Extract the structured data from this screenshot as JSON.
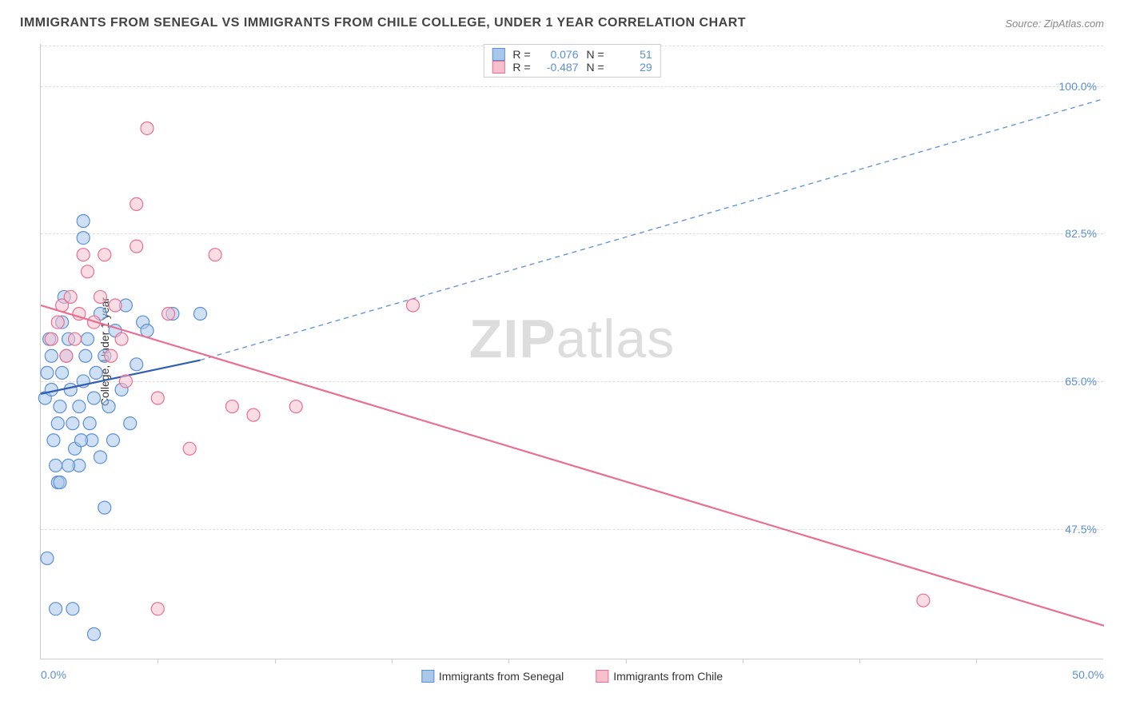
{
  "title": "IMMIGRANTS FROM SENEGAL VS IMMIGRANTS FROM CHILE COLLEGE, UNDER 1 YEAR CORRELATION CHART",
  "source": "Source: ZipAtlas.com",
  "watermark_bold": "ZIP",
  "watermark_rest": "atlas",
  "ylabel": "College, Under 1 year",
  "chart": {
    "type": "scatter",
    "xlim": [
      0,
      50
    ],
    "ylim": [
      32,
      105
    ],
    "x_ticks": [
      0,
      50
    ],
    "x_tick_labels": [
      "0.0%",
      "50.0%"
    ],
    "x_minor_ticks": [
      5.5,
      11,
      16.5,
      22,
      27.5,
      33,
      38.5,
      44
    ],
    "y_ticks": [
      47.5,
      65.0,
      82.5,
      100.0
    ],
    "y_tick_labels": [
      "47.5%",
      "65.0%",
      "82.5%",
      "100.0%"
    ],
    "grid_color": "#dddddd",
    "background": "#ffffff",
    "marker_radius": 8,
    "marker_opacity": 0.55,
    "marker_stroke_width": 1.2,
    "series": [
      {
        "name": "Immigrants from Senegal",
        "fill": "#a9c7eb",
        "stroke": "#5b8fd6",
        "r_value": "0.076",
        "n_value": "51",
        "trend_solid": {
          "x1": 0,
          "y1": 63.5,
          "x2": 7.5,
          "y2": 67.5,
          "stroke": "#2f5fb0",
          "width": 2.2
        },
        "trend_dashed": {
          "x1": 7.5,
          "y1": 67.5,
          "x2": 50,
          "y2": 98.5,
          "stroke": "#5b8fd6",
          "width": 1.3,
          "dash": "6,5"
        },
        "points": [
          [
            0.2,
            63
          ],
          [
            0.3,
            66
          ],
          [
            0.4,
            70
          ],
          [
            0.5,
            68
          ],
          [
            0.5,
            64
          ],
          [
            0.6,
            58
          ],
          [
            0.7,
            55
          ],
          [
            0.8,
            53
          ],
          [
            0.8,
            60
          ],
          [
            0.9,
            62
          ],
          [
            1.0,
            66
          ],
          [
            1.0,
            72
          ],
          [
            1.1,
            75
          ],
          [
            1.2,
            68
          ],
          [
            1.3,
            70
          ],
          [
            1.4,
            64
          ],
          [
            1.5,
            60
          ],
          [
            1.6,
            57
          ],
          [
            1.8,
            55
          ],
          [
            1.8,
            62
          ],
          [
            2.0,
            84
          ],
          [
            2.0,
            82
          ],
          [
            2.0,
            65
          ],
          [
            2.1,
            68
          ],
          [
            2.2,
            70
          ],
          [
            2.3,
            60
          ],
          [
            2.4,
            58
          ],
          [
            2.5,
            63
          ],
          [
            2.6,
            66
          ],
          [
            2.8,
            73
          ],
          [
            3.0,
            68
          ],
          [
            3.2,
            62
          ],
          [
            3.5,
            71
          ],
          [
            3.8,
            64
          ],
          [
            4.0,
            74
          ],
          [
            4.2,
            60
          ],
          [
            4.5,
            67
          ],
          [
            4.8,
            72
          ],
          [
            0.3,
            44
          ],
          [
            0.7,
            38
          ],
          [
            1.5,
            38
          ],
          [
            2.5,
            35
          ],
          [
            3.0,
            50
          ],
          [
            0.9,
            53
          ],
          [
            1.3,
            55
          ],
          [
            1.9,
            58
          ],
          [
            2.8,
            56
          ],
          [
            3.4,
            58
          ],
          [
            7.5,
            73
          ],
          [
            6.2,
            73
          ],
          [
            5.0,
            71
          ]
        ]
      },
      {
        "name": "Immigrants from Chile",
        "fill": "#f6c0ce",
        "stroke": "#e96f91",
        "r_value": "-0.487",
        "n_value": "29",
        "trend_solid": {
          "x1": 0,
          "y1": 74,
          "x2": 50,
          "y2": 36,
          "stroke": "#e96f91",
          "width": 2.2
        },
        "points": [
          [
            0.5,
            70
          ],
          [
            0.8,
            72
          ],
          [
            1.0,
            74
          ],
          [
            1.2,
            68
          ],
          [
            1.4,
            75
          ],
          [
            1.6,
            70
          ],
          [
            1.8,
            73
          ],
          [
            2.0,
            80
          ],
          [
            2.2,
            78
          ],
          [
            2.5,
            72
          ],
          [
            2.8,
            75
          ],
          [
            3.0,
            80
          ],
          [
            3.3,
            68
          ],
          [
            3.5,
            74
          ],
          [
            3.8,
            70
          ],
          [
            4.0,
            65
          ],
          [
            4.5,
            81
          ],
          [
            5.0,
            95
          ],
          [
            5.5,
            63
          ],
          [
            6.0,
            73
          ],
          [
            7.0,
            57
          ],
          [
            8.2,
            80
          ],
          [
            9.0,
            62
          ],
          [
            10.0,
            61
          ],
          [
            12.0,
            62
          ],
          [
            17.5,
            74
          ],
          [
            5.5,
            38
          ],
          [
            41.5,
            39
          ],
          [
            4.5,
            86
          ]
        ]
      }
    ],
    "legend_labels": {
      "r_prefix": "R =",
      "n_prefix": "N ="
    },
    "bottom_legend": [
      {
        "label": "Immigrants from Senegal",
        "fill": "#a9c7eb",
        "stroke": "#5b8fd6"
      },
      {
        "label": "Immigrants from Chile",
        "fill": "#f6c0ce",
        "stroke": "#e96f91"
      }
    ]
  }
}
